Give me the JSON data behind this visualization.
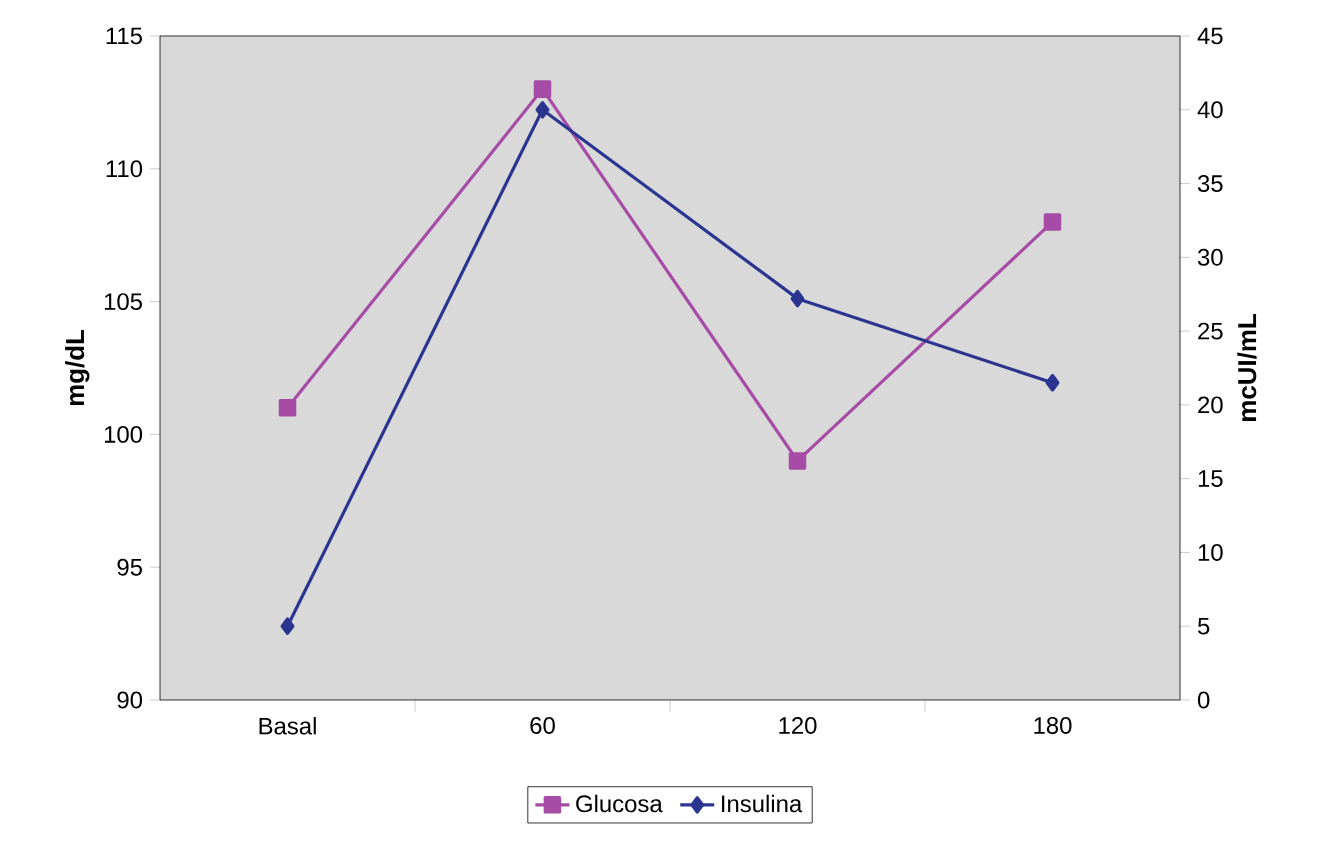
{
  "chart_data": {
    "type": "line",
    "categories": [
      "Basal",
      "60",
      "120",
      "180"
    ],
    "ylabel": "mg/dL",
    "y2label": "mcUI/mL",
    "ylim": [
      90,
      115
    ],
    "yticks": [
      90,
      95,
      100,
      105,
      110,
      115
    ],
    "y2lim": [
      0,
      45
    ],
    "y2ticks": [
      0,
      5,
      10,
      15,
      20,
      25,
      30,
      35,
      40,
      45
    ],
    "legend": "bottom",
    "grid": false,
    "series": [
      {
        "name": "Glucosa",
        "color": "#a64ca6",
        "marker": "square",
        "values": [
          101,
          113,
          99,
          108
        ]
      },
      {
        "name": "Insulina",
        "color": "#2b3590",
        "marker": "diamond",
        "axis": "y2",
        "values": [
          5,
          40,
          27.2,
          21.5
        ]
      }
    ]
  }
}
